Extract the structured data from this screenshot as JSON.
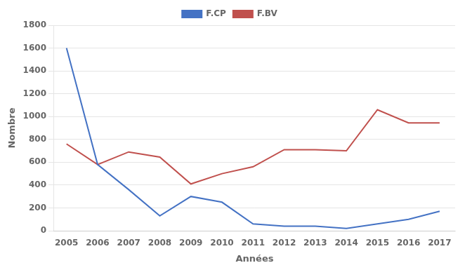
{
  "chart_data": {
    "type": "line",
    "x": [
      2005,
      2006,
      2007,
      2008,
      2009,
      2010,
      2011,
      2012,
      2013,
      2014,
      2015,
      2016,
      2017
    ],
    "series": [
      {
        "name": "F.CP",
        "color": "#4472C4",
        "values": [
          1600,
          580,
          360,
          130,
          300,
          250,
          60,
          40,
          40,
          20,
          60,
          100,
          170
        ]
      },
      {
        "name": "F.BV",
        "color": "#C0504D",
        "values": [
          760,
          580,
          690,
          645,
          410,
          500,
          560,
          710,
          710,
          700,
          1060,
          945,
          945
        ]
      }
    ],
    "xlabel": "Années",
    "ylabel": "Nombre",
    "xlim": [
      2004.6,
      2017.5
    ],
    "xticks": [
      2005,
      2006,
      2007,
      2008,
      2009,
      2010,
      2011,
      2012,
      2013,
      2014,
      2015,
      2016,
      2017
    ],
    "ylim": [
      0,
      1800
    ],
    "yticks": [
      0,
      200,
      400,
      600,
      800,
      1000,
      1200,
      1400,
      1600,
      1800
    ],
    "grid": "y",
    "legend": "top",
    "marker": "none"
  }
}
